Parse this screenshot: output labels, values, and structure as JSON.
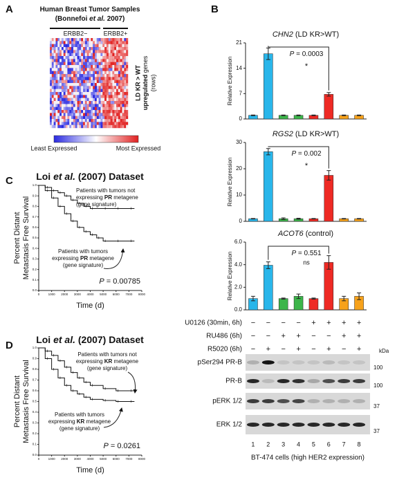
{
  "panel_a": {
    "label": "A",
    "title": "Human Breast Tumor Samples",
    "subtitle_parts": [
      "(Bonnefoi ",
      "et al.",
      " 2007)"
    ],
    "groups": [
      "ERBB2−",
      "ERBB2+"
    ],
    "side_label": [
      "LD KR > WT",
      "upregulated",
      " genes",
      "(rows)"
    ],
    "legend": [
      "Least Expressed",
      "Most Expressed"
    ]
  },
  "panel_b": {
    "label": "B",
    "bar_colors": [
      "#29b6ea",
      "#29b6ea",
      "#3cb54a",
      "#3cb54a",
      "#ee2a24",
      "#ee2a24",
      "#f7a21b",
      "#f7a21b"
    ],
    "charts": [
      {
        "title_parts": [
          "CHN2",
          " (LD KR>WT)"
        ],
        "y_label": "Relative Expression",
        "ylim": [
          0,
          21
        ],
        "yticks": [
          0,
          7,
          14,
          21
        ],
        "values": [
          1,
          18,
          1,
          1,
          1,
          6.8,
          1,
          1
        ],
        "errors": [
          0.1,
          1.6,
          0.1,
          0.1,
          0.1,
          0.5,
          0.1,
          0.1
        ],
        "p_parts": [
          "P",
          " = 0.0003"
        ],
        "significance": "*"
      },
      {
        "title_parts": [
          "RGS2",
          " (LD KR>WT)"
        ],
        "y_label": "Relative Expression",
        "ylim": [
          0,
          30
        ],
        "yticks": [
          0,
          10,
          20,
          30
        ],
        "values": [
          1,
          26.5,
          1,
          1,
          1,
          17.5,
          1,
          1
        ],
        "errors": [
          0.1,
          1.2,
          0.3,
          0.2,
          0.1,
          1.8,
          0.1,
          0.1
        ],
        "p_parts": [
          "P",
          " = 0.002"
        ],
        "significance": "*"
      },
      {
        "title_parts": [
          "ACOT6",
          " (control)"
        ],
        "y_label": "Relative Expression",
        "ylim": [
          0,
          6
        ],
        "yticks": [
          {
            "value": 0,
            "label": "0.0"
          },
          {
            "value": 2,
            "label": "2.0"
          },
          {
            "value": 4,
            "label": "4.0"
          },
          {
            "value": 6,
            "label": "6.0"
          }
        ],
        "values": [
          1,
          3.95,
          1,
          1.2,
          1,
          4.2,
          1,
          1.2
        ],
        "errors": [
          0.2,
          0.3,
          0.05,
          0.2,
          0.05,
          0.6,
          0.2,
          0.3
        ],
        "p_parts": [
          "P",
          " = 0.551"
        ],
        "significance": "ns"
      }
    ],
    "treatments": [
      {
        "name": "U0126 (30min, 6h)",
        "signs": [
          "−",
          "−",
          "−",
          "−",
          "+",
          "+",
          "+",
          "+"
        ]
      },
      {
        "name": "RU486 (6h)",
        "signs": [
          "−",
          "−",
          "+",
          "+",
          "−",
          "−",
          "+",
          "+"
        ]
      },
      {
        "name": "R5020 (6h)",
        "signs": [
          "−",
          "+",
          "−",
          "+",
          "−",
          "+",
          "−",
          "+"
        ]
      }
    ],
    "blots": [
      {
        "name": "pSer294 PR-B",
        "marker": "100"
      },
      {
        "name": "PR-B",
        "marker": "100"
      },
      {
        "name": "pERK 1/2",
        "marker": "37"
      },
      {
        "name": "ERK 1/2",
        "marker": "37"
      }
    ],
    "kda": "kDa",
    "lanes": [
      "1",
      "2",
      "3",
      "4",
      "5",
      "6",
      "7",
      "8"
    ],
    "caption": "BT-474 cells (high HER2 expression)"
  },
  "panel_c": {
    "label": "C",
    "title_parts": [
      "Loi ",
      "et al.",
      " (2007) Dataset"
    ],
    "y_label": [
      "Percent Distant",
      "Metastasis Free Survival"
    ],
    "x_label": "Time (d)",
    "xlim": [
      0,
      8000
    ],
    "xticks": [
      0,
      1000,
      2000,
      3000,
      4000,
      5000,
      6000,
      7000,
      8000
    ],
    "ylim": [
      0,
      1
    ],
    "yticks": [
      {
        "value": 0,
        "label": "0.0"
      },
      {
        "value": 0.1,
        "label": "0.1"
      },
      {
        "value": 0.2,
        "label": "0.2"
      },
      {
        "value": 0.3,
        "label": "0.3"
      },
      {
        "value": 0.4,
        "label": "0.4"
      },
      {
        "value": 0.5,
        "label": "0.5"
      },
      {
        "value": 0.6,
        "label": "0.6"
      },
      {
        "value": 0.7,
        "label": "0.7"
      },
      {
        "value": 0.8,
        "label": "0.8"
      },
      {
        "value": 0.9,
        "label": "0.9"
      },
      {
        "value": 1,
        "label": "1.0"
      }
    ],
    "series": [
      {
        "x": [
          0,
          500,
          1000,
          1500,
          2000,
          2500,
          3000,
          3500,
          4000,
          5000,
          6000,
          7000
        ],
        "values": [
          1,
          0.98,
          0.95,
          0.93,
          0.9,
          0.86,
          0.83,
          0.8,
          0.78,
          0.78,
          0.78,
          0.78
        ]
      },
      {
        "x": [
          0,
          500,
          1000,
          1500,
          2000,
          2500,
          3000,
          3500,
          4000,
          4500,
          5000,
          6000,
          7000
        ],
        "values": [
          1,
          0.95,
          0.88,
          0.8,
          0.73,
          0.66,
          0.6,
          0.56,
          0.53,
          0.5,
          0.47,
          0.47,
          0.47
        ]
      }
    ],
    "annotation_upper": [
      "Patients with tumors not",
      "expressing ",
      "PR",
      " metagene",
      "(gene signature)"
    ],
    "annotation_lower": [
      "Patients with tumors",
      "expressing ",
      "PR",
      " metagene",
      "(gene signature)"
    ],
    "p_parts": [
      "P",
      " = 0.00785"
    ]
  },
  "panel_d": {
    "label": "D",
    "title_parts": [
      "Loi ",
      "et al.",
      " (2007) Dataset"
    ],
    "y_label": [
      "Percent Distant",
      "Metastasis Free Survival"
    ],
    "x_label": "Time (d)",
    "xlim": [
      0,
      8000
    ],
    "xticks": [
      0,
      1000,
      2000,
      3000,
      4000,
      5000,
      6000,
      7000,
      8000
    ],
    "ylim": [
      0,
      1
    ],
    "yticks": [
      {
        "value": 0,
        "label": "0.0"
      },
      {
        "value": 0.1,
        "label": "0.1"
      },
      {
        "value": 0.2,
        "label": "0.2"
      },
      {
        "value": 0.3,
        "label": "0.3"
      },
      {
        "value": 0.4,
        "label": "0.4"
      },
      {
        "value": 0.5,
        "label": "0.5"
      },
      {
        "value": 0.6,
        "label": "0.6"
      },
      {
        "value": 0.7,
        "label": "0.7"
      },
      {
        "value": 0.8,
        "label": "0.8"
      },
      {
        "value": 0.9,
        "label": "0.9"
      },
      {
        "value": 1,
        "label": "1.0"
      }
    ],
    "series": [
      {
        "x": [
          0,
          500,
          1000,
          1500,
          2000,
          2500,
          3000,
          3500,
          4000,
          5000,
          6000,
          7000
        ],
        "values": [
          1,
          0.97,
          0.93,
          0.88,
          0.82,
          0.77,
          0.72,
          0.68,
          0.65,
          0.62,
          0.6,
          0.6
        ]
      },
      {
        "x": [
          0,
          500,
          1000,
          1500,
          2000,
          2500,
          3000,
          3500,
          4000,
          5000,
          6000,
          7000
        ],
        "values": [
          1,
          0.9,
          0.8,
          0.72,
          0.65,
          0.6,
          0.57,
          0.54,
          0.52,
          0.51,
          0.5,
          0.5
        ]
      }
    ],
    "annotation_upper": [
      "Patients with tumors not",
      "expressing ",
      "KR",
      " metagene",
      "(gene signature)"
    ],
    "annotation_lower": [
      "Patients with tumors",
      "expressing ",
      "KR",
      " metagene",
      "(gene signature)"
    ],
    "p_parts": [
      "P",
      " = 0.0261"
    ]
  }
}
